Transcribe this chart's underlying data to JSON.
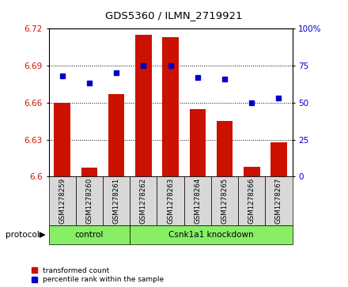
{
  "title": "GDS5360 / ILMN_2719921",
  "samples": [
    "GSM1278259",
    "GSM1278260",
    "GSM1278261",
    "GSM1278262",
    "GSM1278263",
    "GSM1278264",
    "GSM1278265",
    "GSM1278266",
    "GSM1278267"
  ],
  "bar_values": [
    6.66,
    6.607,
    6.667,
    6.715,
    6.713,
    6.655,
    6.645,
    6.608,
    6.628
  ],
  "pct_values": [
    68,
    63,
    70,
    75,
    75,
    67,
    66,
    50,
    53
  ],
  "ylim_left": [
    6.6,
    6.72
  ],
  "ylim_right": [
    0,
    100
  ],
  "yticks_left": [
    6.6,
    6.63,
    6.66,
    6.69,
    6.72
  ],
  "yticks_right": [
    0,
    25,
    50,
    75,
    100
  ],
  "bar_color": "#cc1100",
  "dot_color": "#0000cc",
  "grid_color": "#000000",
  "control_label": "control",
  "knockdown_label": "Csnk1a1 knockdown",
  "protocol_label": "protocol",
  "legend_bar": "transformed count",
  "legend_dot": "percentile rank within the sample",
  "bar_width": 0.6,
  "tick_fontsize": 7.5,
  "label_fontsize": 8,
  "cell_color": "#d8d8d8",
  "green_color": "#88ee66",
  "title_fontsize": 9.5
}
